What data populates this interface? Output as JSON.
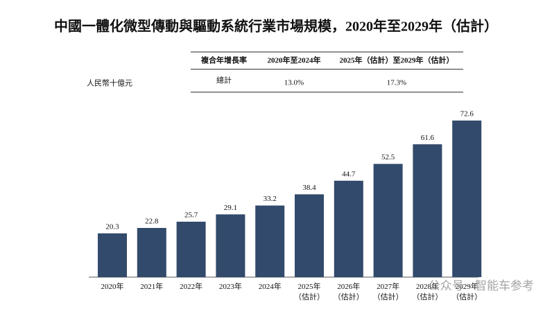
{
  "chart_data": {
    "type": "bar",
    "title": "中國一體化微型傳動與驅動系統行業市場規模，2020年至2029年（估計）",
    "unit_label": "人民幣十億元",
    "table": {
      "header": [
        "複合年增長率",
        "2020年至2024年",
        "2025年（估計）至2029年（估計）"
      ],
      "row": [
        "總計",
        "13.0%",
        "17.3%"
      ]
    },
    "categories": [
      "2020年",
      "2021年",
      "2022年",
      "2023年",
      "2024年",
      "2025年\n（估計）",
      "2026年\n（估計）",
      "2027年\n（估計）",
      "2028年\n（估計）",
      "2029年\n（估計）"
    ],
    "values": [
      20.3,
      22.8,
      25.7,
      29.1,
      33.2,
      38.4,
      44.7,
      52.5,
      61.6,
      72.6
    ],
    "color": "#324a6b",
    "watermark": "公众号 · 智能车参考"
  }
}
